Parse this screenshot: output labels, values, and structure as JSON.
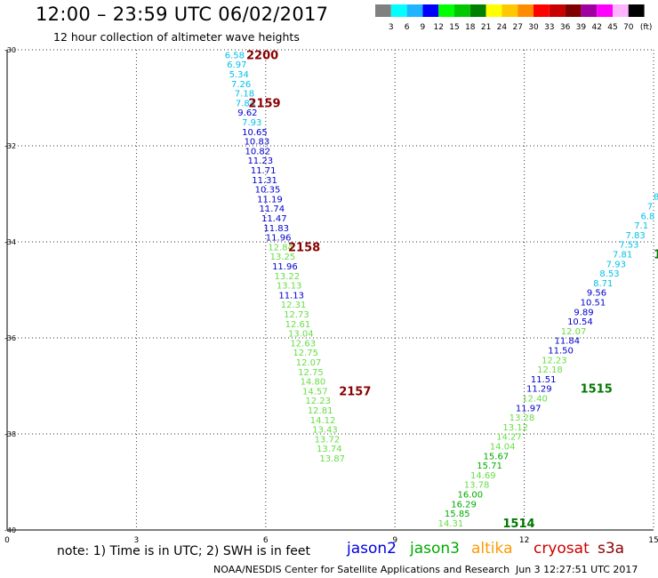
{
  "header": {
    "title": "12:00 – 23:59 UTC 06/02/2017",
    "subtitle": "12 hour collection of altimeter wave heights"
  },
  "legend_scale": {
    "ticks": [
      "3",
      "6",
      "9",
      "12",
      "15",
      "18",
      "21",
      "24",
      "27",
      "30",
      "33",
      "36",
      "39",
      "42",
      "45",
      "70"
    ],
    "unit": "(ft)",
    "colors": [
      "#808080",
      "#00ffff",
      "#1eb4ff",
      "#0000ff",
      "#00ff00",
      "#00c800",
      "#008000",
      "#ffff00",
      "#ffc800",
      "#ff8c00",
      "#ff0000",
      "#c80000",
      "#800000",
      "#a000a0",
      "#ff00ff",
      "#ffb4ff",
      "#000000"
    ]
  },
  "note": {
    "text": "note: 1) Time is in UTC; 2) SWH is in feet"
  },
  "satellites": [
    {
      "name": "jason2",
      "color": "#0000dd"
    },
    {
      "name": "jason3",
      "color": "#00aa00"
    },
    {
      "name": "altika",
      "color": "#ff9900"
    },
    {
      "name": "cryosat",
      "color": "#cc0000"
    },
    {
      "name": "s3a",
      "color": "#880000"
    }
  ],
  "footer": {
    "left": "NOAA/NESDIS Center for Satellite Applications and Research",
    "right": "Jun  3 12:27:51 UTC 2017"
  },
  "chart_data": {
    "type": "scatter",
    "xlabel": "",
    "ylabel": "",
    "xlim": [
      0,
      15
    ],
    "ylim": [
      -40,
      -30
    ],
    "x_ticks": [
      0,
      3,
      6,
      9,
      12,
      15
    ],
    "y_ticks": [
      -30,
      -32,
      -34,
      -36,
      -38,
      -40
    ],
    "grid": true,
    "series": [
      {
        "name": "cryosat",
        "points": [
          {
            "x": 5.05,
            "y": -30.1,
            "label": "6.58",
            "color": "#00c0e8"
          },
          {
            "x": 5.1,
            "y": -30.3,
            "label": "6.97",
            "color": "#00c0e8"
          },
          {
            "x": 5.15,
            "y": -30.5,
            "label": "5.34",
            "color": "#00c0e8"
          },
          {
            "x": 5.2,
            "y": -30.7,
            "label": "7.26",
            "color": "#00c0e8"
          },
          {
            "x": 5.28,
            "y": -30.9,
            "label": "7.18",
            "color": "#00c0e8"
          },
          {
            "x": 5.3,
            "y": -31.1,
            "label": "7.84",
            "color": "#00c0e8"
          },
          {
            "x": 5.35,
            "y": -31.3,
            "label": "9.62",
            "color": "#0000cc"
          },
          {
            "x": 5.45,
            "y": -31.5,
            "label": "7.93",
            "color": "#00c0e8"
          },
          {
            "x": 5.45,
            "y": -31.7,
            "label": "10.65",
            "color": "#0000cc"
          },
          {
            "x": 5.5,
            "y": -31.9,
            "label": "10.83",
            "color": "#0000cc"
          },
          {
            "x": 5.52,
            "y": -32.1,
            "label": "10.82",
            "color": "#0000cc"
          },
          {
            "x": 5.58,
            "y": -32.3,
            "label": "11.23",
            "color": "#0000cc"
          },
          {
            "x": 5.65,
            "y": -32.5,
            "label": "11.71",
            "color": "#0000cc"
          },
          {
            "x": 5.68,
            "y": -32.7,
            "label": "11.31",
            "color": "#0000cc"
          },
          {
            "x": 5.75,
            "y": -32.9,
            "label": "10.35",
            "color": "#0000cc"
          },
          {
            "x": 5.8,
            "y": -33.1,
            "label": "11.19",
            "color": "#0000cc"
          },
          {
            "x": 5.85,
            "y": -33.3,
            "label": "11.74",
            "color": "#0000cc"
          },
          {
            "x": 5.9,
            "y": -33.5,
            "label": "11.47",
            "color": "#0000cc"
          },
          {
            "x": 5.95,
            "y": -33.7,
            "label": "11.83",
            "color": "#0000cc"
          },
          {
            "x": 6.0,
            "y": -33.9,
            "label": "11.96",
            "color": "#0000cc"
          },
          {
            "x": 6.05,
            "y": -34.1,
            "label": "12.84",
            "color": "#66dd44"
          },
          {
            "x": 6.1,
            "y": -34.3,
            "label": "13.25",
            "color": "#66dd44"
          },
          {
            "x": 6.15,
            "y": -34.5,
            "label": "11.96",
            "color": "#0000cc"
          },
          {
            "x": 6.2,
            "y": -34.7,
            "label": "13.22",
            "color": "#66dd44"
          },
          {
            "x": 6.25,
            "y": -34.9,
            "label": "13.13",
            "color": "#66dd44"
          },
          {
            "x": 6.3,
            "y": -35.1,
            "label": "11.13",
            "color": "#0000cc"
          },
          {
            "x": 6.35,
            "y": -35.3,
            "label": "12.31",
            "color": "#66dd44"
          },
          {
            "x": 6.42,
            "y": -35.5,
            "label": "12.73",
            "color": "#66dd44"
          },
          {
            "x": 6.45,
            "y": -35.7,
            "label": "12.61",
            "color": "#66dd44"
          },
          {
            "x": 6.52,
            "y": -35.9,
            "label": "13.04",
            "color": "#66dd44"
          },
          {
            "x": 6.57,
            "y": -36.1,
            "label": "12.63",
            "color": "#66dd44"
          },
          {
            "x": 6.63,
            "y": -36.3,
            "label": "12.75",
            "color": "#66dd44"
          },
          {
            "x": 6.7,
            "y": -36.5,
            "label": "12.07",
            "color": "#66dd44"
          },
          {
            "x": 6.75,
            "y": -36.7,
            "label": "12.75",
            "color": "#66dd44"
          },
          {
            "x": 6.8,
            "y": -36.9,
            "label": "14.80",
            "color": "#66dd44"
          },
          {
            "x": 6.85,
            "y": -37.1,
            "label": "14.57",
            "color": "#66dd44"
          },
          {
            "x": 6.92,
            "y": -37.3,
            "label": "12.23",
            "color": "#66dd44"
          },
          {
            "x": 6.97,
            "y": -37.5,
            "label": "12.81",
            "color": "#66dd44"
          },
          {
            "x": 7.03,
            "y": -37.7,
            "label": "14.12",
            "color": "#66dd44"
          },
          {
            "x": 7.08,
            "y": -37.9,
            "label": "13.43",
            "color": "#66dd44"
          },
          {
            "x": 7.13,
            "y": -38.1,
            "label": "13.72",
            "color": "#66dd44"
          },
          {
            "x": 7.18,
            "y": -38.3,
            "label": "13.74",
            "color": "#66dd44"
          },
          {
            "x": 7.25,
            "y": -38.5,
            "label": "13.87",
            "color": "#66dd44"
          }
        ],
        "time_labels": [
          {
            "x": 5.55,
            "y": -30.1,
            "label": "2200",
            "color": "#880000"
          },
          {
            "x": 5.6,
            "y": -31.1,
            "label": "2159",
            "color": "#880000"
          },
          {
            "x": 6.52,
            "y": -34.1,
            "label": "2158",
            "color": "#880000"
          },
          {
            "x": 7.7,
            "y": -37.1,
            "label": "2157",
            "color": "#880000"
          }
        ]
      },
      {
        "name": "jason3",
        "points": [
          {
            "x": 15.0,
            "y": -33.05,
            "label": "8",
            "color": "#00c0e8"
          },
          {
            "x": 14.85,
            "y": -33.25,
            "label": "7",
            "color": "#00c0e8"
          },
          {
            "x": 14.7,
            "y": -33.45,
            "label": "6.8",
            "color": "#00c0e8"
          },
          {
            "x": 14.55,
            "y": -33.65,
            "label": "7.1",
            "color": "#00c0e8"
          },
          {
            "x": 14.35,
            "y": -33.85,
            "label": "7.83",
            "color": "#00c0e8"
          },
          {
            "x": 14.2,
            "y": -34.05,
            "label": "7.53",
            "color": "#00c0e8"
          },
          {
            "x": 14.05,
            "y": -34.25,
            "label": "7.81",
            "color": "#00c0e8"
          },
          {
            "x": 13.9,
            "y": -34.45,
            "label": "7.93",
            "color": "#00c0e8"
          },
          {
            "x": 13.75,
            "y": -34.65,
            "label": "8.53",
            "color": "#00c0e8"
          },
          {
            "x": 13.6,
            "y": -34.85,
            "label": "8.71",
            "color": "#00c0e8"
          },
          {
            "x": 13.45,
            "y": -35.05,
            "label": "9.56",
            "color": "#0000cc"
          },
          {
            "x": 13.3,
            "y": -35.25,
            "label": "10.51",
            "color": "#0000cc"
          },
          {
            "x": 13.15,
            "y": -35.45,
            "label": "9.89",
            "color": "#0000cc"
          },
          {
            "x": 13.0,
            "y": -35.65,
            "label": "10.54",
            "color": "#0000cc"
          },
          {
            "x": 12.85,
            "y": -35.85,
            "label": "12.07",
            "color": "#66dd44"
          },
          {
            "x": 12.7,
            "y": -36.05,
            "label": "11.84",
            "color": "#0000cc"
          },
          {
            "x": 12.55,
            "y": -36.25,
            "label": "11.50",
            "color": "#0000cc"
          },
          {
            "x": 12.4,
            "y": -36.45,
            "label": "12.23",
            "color": "#66dd44"
          },
          {
            "x": 12.3,
            "y": -36.65,
            "label": "12.18",
            "color": "#66dd44"
          },
          {
            "x": 12.15,
            "y": -36.85,
            "label": "11.51",
            "color": "#0000cc"
          },
          {
            "x": 12.05,
            "y": -37.05,
            "label": "11.29",
            "color": "#0000cc"
          },
          {
            "x": 11.95,
            "y": -37.25,
            "label": "12.40",
            "color": "#66dd44"
          },
          {
            "x": 11.8,
            "y": -37.45,
            "label": "11.97",
            "color": "#0000cc"
          },
          {
            "x": 11.65,
            "y": -37.65,
            "label": "13.28",
            "color": "#66dd44"
          },
          {
            "x": 11.5,
            "y": -37.85,
            "label": "13.12",
            "color": "#66dd44"
          },
          {
            "x": 11.35,
            "y": -38.05,
            "label": "14.27",
            "color": "#66dd44"
          },
          {
            "x": 11.2,
            "y": -38.25,
            "label": "14.04",
            "color": "#66dd44"
          },
          {
            "x": 11.05,
            "y": -38.45,
            "label": "15.67",
            "color": "#00aa00"
          },
          {
            "x": 10.9,
            "y": -38.65,
            "label": "15.71",
            "color": "#00aa00"
          },
          {
            "x": 10.75,
            "y": -38.85,
            "label": "14.69",
            "color": "#66dd44"
          },
          {
            "x": 10.6,
            "y": -39.05,
            "label": "13.78",
            "color": "#66dd44"
          },
          {
            "x": 10.45,
            "y": -39.25,
            "label": "16.00",
            "color": "#00aa00"
          },
          {
            "x": 10.3,
            "y": -39.45,
            "label": "16.29",
            "color": "#00aa00"
          },
          {
            "x": 10.15,
            "y": -39.65,
            "label": "15.85",
            "color": "#00aa00"
          },
          {
            "x": 10.0,
            "y": -39.85,
            "label": "14.31",
            "color": "#66dd44"
          }
        ],
        "time_labels": [
          {
            "x": 15.0,
            "y": -34.25,
            "label": "1",
            "color": "#007700"
          },
          {
            "x": 13.3,
            "y": -37.05,
            "label": "1515",
            "color": "#007700"
          },
          {
            "x": 11.5,
            "y": -39.85,
            "label": "1514",
            "color": "#007700"
          }
        ]
      }
    ]
  }
}
